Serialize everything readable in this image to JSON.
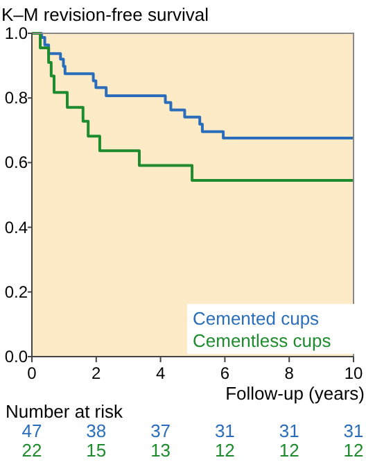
{
  "chart_data": {
    "type": "step",
    "title": "K–M revision-free survival",
    "xlabel": "Follow-up (years)",
    "xlim": [
      0,
      10
    ],
    "xticks": [
      0,
      2,
      4,
      6,
      8,
      10
    ],
    "ylim": [
      0,
      1
    ],
    "yticks": [
      {
        "value": 0,
        "label": "0.0"
      },
      {
        "value": 0.2,
        "label": "0.2"
      },
      {
        "value": 0.4,
        "label": "0.4"
      },
      {
        "value": 0.6,
        "label": "0.6"
      },
      {
        "value": 0.8,
        "label": "0.8"
      },
      {
        "value": 1,
        "label": "1.0"
      }
    ],
    "legend": "bottom right",
    "marker": "none",
    "line_style": "solid",
    "series": [
      {
        "name": "Cemented cups",
        "color": "#2a6ebb",
        "x": [
          0,
          0.3,
          0.4,
          0.52,
          0.89,
          0.98,
          1.03,
          1.91,
          1.99,
          2.31,
          4.15,
          4.32,
          4.75,
          5.22,
          5.3,
          5.95,
          10
        ],
        "values": [
          1,
          0.987,
          0.964,
          0.937,
          0.92,
          0.898,
          0.875,
          0.853,
          0.832,
          0.807,
          0.786,
          0.763,
          0.741,
          0.719,
          0.696,
          0.676,
          0.676
        ]
      },
      {
        "name": "Cementless cups",
        "color": "#1e8c2e",
        "x": [
          0,
          0.26,
          0.52,
          0.6,
          0.69,
          1.1,
          1.59,
          1.75,
          2.11,
          3.34,
          4.98,
          10
        ],
        "values": [
          1,
          0.955,
          0.91,
          0.868,
          0.817,
          0.771,
          0.728,
          0.682,
          0.637,
          0.591,
          0.545,
          0.545
        ]
      }
    ],
    "annotations": [
      "Number at risk",
      "47 38 37 31 31 31",
      "22 15 13 12 12 12"
    ]
  }
}
